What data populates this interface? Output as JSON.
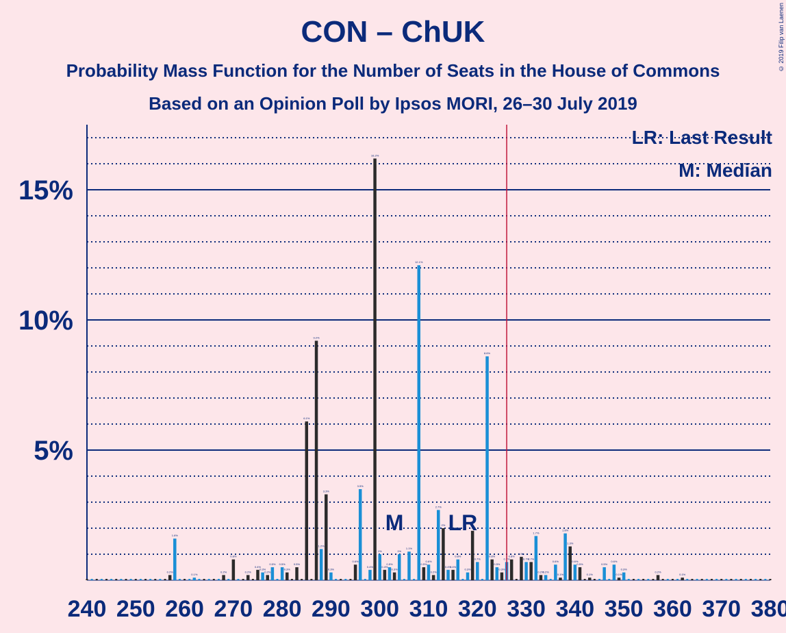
{
  "chart_data": {
    "type": "bar",
    "title": "CON – ChUK",
    "subtitle": "Probability Mass Function for the Number of Seats in the House of Commons",
    "subtitle2": "Based on an Opinion Poll by Ipsos MORI, 26–30 July 2019",
    "copyright": "© 2019 Filip van Laenen",
    "xlim": [
      240,
      380
    ],
    "ylim": [
      0,
      17.5
    ],
    "x_ticks": [
      240,
      250,
      260,
      270,
      280,
      290,
      300,
      310,
      320,
      330,
      340,
      350,
      360,
      370,
      380
    ],
    "y_ticks": [
      {
        "value": 5,
        "label": "5%"
      },
      {
        "value": 10,
        "label": "10%"
      },
      {
        "value": 15,
        "label": "15%"
      }
    ],
    "majority_line": 326,
    "annotations": [
      {
        "text": "M",
        "x": 303
      },
      {
        "text": "LR",
        "x": 317
      }
    ],
    "legend": [
      "LR: Last Result",
      "M: Median"
    ],
    "colors": {
      "series_a": "#2b2b2b",
      "series_b": "#1a8fd6",
      "majority": "#c0163a",
      "axis": "#0b2a7a"
    },
    "bars": [
      {
        "x": 257,
        "v": 0.2,
        "s": "a"
      },
      {
        "x": 258,
        "v": 1.6,
        "s": "b"
      },
      {
        "x": 262,
        "v": 0.1,
        "s": "b"
      },
      {
        "x": 268,
        "v": 0.2,
        "s": "a"
      },
      {
        "x": 270,
        "v": 0.8,
        "s": "a"
      },
      {
        "x": 273,
        "v": 0.2,
        "s": "a"
      },
      {
        "x": 275,
        "v": 0.4,
        "s": "a"
      },
      {
        "x": 276,
        "v": 0.3,
        "s": "b"
      },
      {
        "x": 277,
        "v": 0.2,
        "s": "a"
      },
      {
        "x": 278,
        "v": 0.5,
        "s": "b"
      },
      {
        "x": 280,
        "v": 0.5,
        "s": "b"
      },
      {
        "x": 281,
        "v": 0.3,
        "s": "a"
      },
      {
        "x": 283,
        "v": 0.5,
        "s": "a"
      },
      {
        "x": 285,
        "v": 6.1,
        "s": "a"
      },
      {
        "x": 287,
        "v": 9.2,
        "s": "a"
      },
      {
        "x": 288,
        "v": 1.2,
        "s": "b"
      },
      {
        "x": 289,
        "v": 3.3,
        "s": "a"
      },
      {
        "x": 290,
        "v": 0.3,
        "s": "b"
      },
      {
        "x": 295,
        "v": 0.6,
        "s": "a"
      },
      {
        "x": 296,
        "v": 3.5,
        "s": "b"
      },
      {
        "x": 298,
        "v": 0.4,
        "s": "b"
      },
      {
        "x": 299,
        "v": 16.2,
        "s": "a"
      },
      {
        "x": 300,
        "v": 1.0,
        "s": "b"
      },
      {
        "x": 301,
        "v": 0.4,
        "s": "a"
      },
      {
        "x": 302,
        "v": 0.5,
        "s": "b"
      },
      {
        "x": 303,
        "v": 0.3,
        "s": "a"
      },
      {
        "x": 304,
        "v": 1.0,
        "s": "b"
      },
      {
        "x": 306,
        "v": 1.1,
        "s": "b"
      },
      {
        "x": 308,
        "v": 12.1,
        "s": "b"
      },
      {
        "x": 309,
        "v": 0.5,
        "s": "a"
      },
      {
        "x": 310,
        "v": 0.6,
        "s": "b"
      },
      {
        "x": 311,
        "v": 0.2,
        "s": "a"
      },
      {
        "x": 312,
        "v": 2.7,
        "s": "b"
      },
      {
        "x": 313,
        "v": 2.0,
        "s": "a"
      },
      {
        "x": 314,
        "v": 0.4,
        "s": "b"
      },
      {
        "x": 315,
        "v": 0.4,
        "s": "a"
      },
      {
        "x": 316,
        "v": 0.8,
        "s": "b"
      },
      {
        "x": 318,
        "v": 0.3,
        "s": "b"
      },
      {
        "x": 319,
        "v": 1.9,
        "s": "a"
      },
      {
        "x": 320,
        "v": 0.7,
        "s": "b"
      },
      {
        "x": 322,
        "v": 8.6,
        "s": "b"
      },
      {
        "x": 323,
        "v": 0.8,
        "s": "a"
      },
      {
        "x": 324,
        "v": 0.5,
        "s": "b"
      },
      {
        "x": 325,
        "v": 0.3,
        "s": "a"
      },
      {
        "x": 326,
        "v": 0.7,
        "s": "b"
      },
      {
        "x": 327,
        "v": 0.8,
        "s": "a"
      },
      {
        "x": 329,
        "v": 0.9,
        "s": "a"
      },
      {
        "x": 330,
        "v": 0.7,
        "s": "b"
      },
      {
        "x": 331,
        "v": 0.7,
        "s": "a"
      },
      {
        "x": 332,
        "v": 1.7,
        "s": "b"
      },
      {
        "x": 333,
        "v": 0.2,
        "s": "a"
      },
      {
        "x": 334,
        "v": 0.2,
        "s": "b"
      },
      {
        "x": 336,
        "v": 0.6,
        "s": "b"
      },
      {
        "x": 337,
        "v": 0.1,
        "s": "a"
      },
      {
        "x": 338,
        "v": 1.8,
        "s": "b"
      },
      {
        "x": 339,
        "v": 1.3,
        "s": "a"
      },
      {
        "x": 340,
        "v": 0.6,
        "s": "b"
      },
      {
        "x": 341,
        "v": 0.5,
        "s": "a"
      },
      {
        "x": 343,
        "v": 0.1,
        "s": "a"
      },
      {
        "x": 346,
        "v": 0.5,
        "s": "b"
      },
      {
        "x": 348,
        "v": 0.6,
        "s": "b"
      },
      {
        "x": 349,
        "v": 0.1,
        "s": "a"
      },
      {
        "x": 350,
        "v": 0.3,
        "s": "b"
      },
      {
        "x": 357,
        "v": 0.2,
        "s": "a"
      },
      {
        "x": 362,
        "v": 0.1,
        "s": "a"
      }
    ]
  }
}
